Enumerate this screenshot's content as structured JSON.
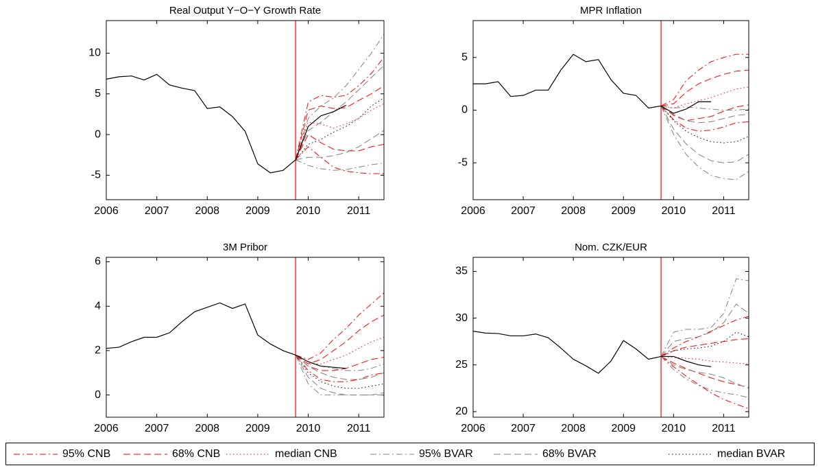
{
  "chart_data": [
    {
      "type": "line",
      "title": "Real Output Y−O−Y Growth Rate",
      "xlim": [
        2006,
        2011.5
      ],
      "xticks": [
        2006,
        2007,
        2008,
        2009,
        2010,
        2011
      ],
      "ylim": [
        -8,
        14
      ],
      "yticks": [
        -5,
        0,
        5,
        10
      ],
      "forecast_start": 2009.75,
      "color": "#000000",
      "x": [
        2006,
        2006.25,
        2006.5,
        2006.75,
        2007,
        2007.25,
        2007.5,
        2007.75,
        2008,
        2008.25,
        2008.5,
        2008.75,
        2009,
        2009.25,
        2009.5,
        2009.75,
        2010,
        2010.25,
        2010.5,
        2010.75
      ],
      "values": [
        6.8,
        7.1,
        7.2,
        6.7,
        7.4,
        6.1,
        5.7,
        5.4,
        3.2,
        3.4,
        2.2,
        0.4,
        -3.6,
        -4.7,
        -4.4,
        -3.1,
        1.0,
        2.3,
        2.8,
        3.6
      ],
      "forecast_x": [
        2009.75,
        2010,
        2010.25,
        2010.5,
        2010.75,
        2011,
        2011.25,
        2011.5
      ],
      "forecast": [
        {
          "lines": [
            [
              -3.1,
              4.0,
              4.8,
              4.6,
              4.8,
              6.0,
              7.5,
              9.5
            ],
            [
              -3.1,
              -1.5,
              -2.8,
              -4.0,
              -4.5,
              -4.7,
              -4.8,
              -4.8
            ]
          ]
        },
        {
          "lines": [
            [
              -3.1,
              3.0,
              3.5,
              3.2,
              3.3,
              4.2,
              5.0,
              6.0
            ],
            [
              -3.1,
              0.0,
              -1.0,
              -1.8,
              -2.0,
              -2.0,
              -1.5,
              -1.2
            ]
          ]
        },
        {
          "lines": [
            [
              -3.1,
              1.5,
              1.3,
              0.8,
              1.3,
              2.0,
              3.0,
              3.8
            ]
          ]
        },
        {
          "lines": [
            [
              -3.1,
              2.0,
              3.5,
              4.5,
              6.0,
              8.0,
              10.0,
              12.3
            ],
            [
              -3.1,
              -3.8,
              -4.2,
              -4.4,
              -4.3,
              -4.0,
              -3.7,
              -3.5
            ]
          ]
        },
        {
          "lines": [
            [
              -3.1,
              0.5,
              1.5,
              2.8,
              4.0,
              5.5,
              7.0,
              8.5
            ],
            [
              -3.1,
              -2.8,
              -2.8,
              -2.6,
              -2.2,
              -1.5,
              -0.5,
              0.5
            ]
          ]
        },
        {
          "lines": [
            [
              -3.1,
              -1.2,
              -0.6,
              0.3,
              1.0,
              2.0,
              3.5,
              4.5
            ]
          ]
        }
      ]
    },
    {
      "type": "line",
      "title": "MPR Inflation",
      "xlim": [
        2006,
        2011.5
      ],
      "xticks": [
        2006,
        2007,
        2008,
        2009,
        2010,
        2011
      ],
      "ylim": [
        -8.5,
        8.5
      ],
      "yticks": [
        -5,
        0,
        5
      ],
      "forecast_start": 2009.75,
      "color": "#000000",
      "x": [
        2006,
        2006.25,
        2006.5,
        2006.75,
        2007,
        2007.25,
        2007.5,
        2007.75,
        2008,
        2008.25,
        2008.5,
        2008.75,
        2009,
        2009.25,
        2009.5,
        2009.75,
        2010,
        2010.25,
        2010.5,
        2010.75
      ],
      "values": [
        2.5,
        2.5,
        2.7,
        1.3,
        1.4,
        1.9,
        1.9,
        3.8,
        5.3,
        4.6,
        4.8,
        2.9,
        1.6,
        1.4,
        0.2,
        0.4,
        -0.3,
        0.1,
        0.8,
        0.8
      ],
      "forecast_x": [
        2009.75,
        2010,
        2010.25,
        2010.5,
        2010.75,
        2011,
        2011.25,
        2011.5
      ],
      "forecast": [
        {
          "lines": [
            [
              0.4,
              1.0,
              2.8,
              3.8,
              4.6,
              5.0,
              5.3,
              5.3
            ],
            [
              0.4,
              -0.9,
              -1.7,
              -2.0,
              -1.9,
              -1.6,
              -1.2,
              -1.1
            ]
          ]
        },
        {
          "lines": [
            [
              0.4,
              0.6,
              1.7,
              2.5,
              3.0,
              3.4,
              3.7,
              3.8
            ],
            [
              0.4,
              -0.5,
              -1.0,
              -0.8,
              -0.6,
              -0.1,
              0.3,
              0.5
            ]
          ]
        },
        {
          "lines": [
            [
              0.4,
              0.2,
              0.6,
              0.9,
              1.2,
              1.6,
              2.0,
              2.2
            ]
          ]
        },
        {
          "lines": [
            [
              0.4,
              0.2,
              0.3,
              0.2,
              0.1,
              0.0,
              0.0,
              0.1
            ],
            [
              0.4,
              -2.3,
              -4.2,
              -5.4,
              -6.2,
              -6.5,
              -6.6,
              -5.8
            ]
          ]
        },
        {
          "lines": [
            [
              0.4,
              -0.4,
              -1.0,
              -1.2,
              -1.1,
              -0.8,
              -0.5,
              -0.4
            ],
            [
              0.4,
              -1.8,
              -3.2,
              -4.2,
              -4.8,
              -5.0,
              -4.9,
              -4.2
            ]
          ]
        },
        {
          "lines": [
            [
              0.4,
              -1.0,
              -2.0,
              -2.6,
              -3.0,
              -3.1,
              -3.0,
              -2.5
            ]
          ]
        }
      ]
    },
    {
      "type": "line",
      "title": "3M Pribor",
      "xlim": [
        2006,
        2011.5
      ],
      "xticks": [
        2006,
        2007,
        2008,
        2009,
        2010,
        2011
      ],
      "ylim": [
        -1,
        6.2
      ],
      "yticks": [
        0,
        2,
        4,
        6
      ],
      "forecast_start": 2009.75,
      "color": "#000000",
      "x": [
        2006,
        2006.25,
        2006.5,
        2006.75,
        2007,
        2007.25,
        2007.5,
        2007.75,
        2008,
        2008.25,
        2008.5,
        2008.75,
        2009,
        2009.25,
        2009.5,
        2009.75,
        2010,
        2010.25,
        2010.5,
        2010.75
      ],
      "values": [
        2.1,
        2.15,
        2.4,
        2.6,
        2.6,
        2.8,
        3.3,
        3.75,
        3.95,
        4.15,
        3.9,
        4.1,
        2.7,
        2.3,
        2.0,
        1.8,
        1.5,
        1.3,
        1.25,
        1.2
      ],
      "forecast_x": [
        2009.75,
        2010,
        2010.25,
        2010.5,
        2010.75,
        2011,
        2011.25,
        2011.5
      ],
      "forecast": [
        {
          "lines": [
            [
              1.8,
              1.6,
              1.9,
              2.5,
              3.0,
              3.6,
              4.1,
              4.6
            ],
            [
              1.8,
              1.1,
              0.7,
              0.6,
              0.6,
              0.7,
              0.9,
              1.0
            ]
          ]
        },
        {
          "lines": [
            [
              1.8,
              1.4,
              1.6,
              2.0,
              2.4,
              2.9,
              3.3,
              3.6
            ],
            [
              1.8,
              1.3,
              1.1,
              1.1,
              1.2,
              1.4,
              1.6,
              1.7
            ]
          ]
        },
        {
          "lines": [
            [
              1.8,
              1.4,
              1.4,
              1.6,
              1.8,
              2.1,
              2.4,
              2.6
            ]
          ]
        },
        {
          "lines": [
            [
              1.8,
              1.5,
              1.3,
              1.2,
              1.1,
              1.1,
              1.2,
              1.4
            ],
            [
              1.8,
              0.5,
              0.0,
              0.0,
              0.0,
              0.0,
              0.0,
              0.0
            ]
          ]
        },
        {
          "lines": [
            [
              1.8,
              1.3,
              1.0,
              0.8,
              0.7,
              0.7,
              0.8,
              1.0
            ],
            [
              1.8,
              0.8,
              0.3,
              0.1,
              0.0,
              0.0,
              0.0,
              0.1
            ]
          ]
        },
        {
          "lines": [
            [
              1.8,
              1.0,
              0.6,
              0.4,
              0.3,
              0.3,
              0.4,
              0.5
            ]
          ]
        }
      ]
    },
    {
      "type": "line",
      "title": "Nom. CZK/EUR",
      "xlim": [
        2006,
        2011.5
      ],
      "xticks": [
        2006,
        2007,
        2008,
        2009,
        2010,
        2011
      ],
      "ylim": [
        19.4,
        36.5
      ],
      "yticks": [
        20,
        25,
        30,
        35
      ],
      "forecast_start": 2009.75,
      "color": "#000000",
      "x": [
        2006,
        2006.25,
        2006.5,
        2006.75,
        2007,
        2007.25,
        2007.5,
        2007.75,
        2008,
        2008.25,
        2008.5,
        2008.75,
        2009,
        2009.25,
        2009.5,
        2009.75,
        2010,
        2010.25,
        2010.5,
        2010.75
      ],
      "values": [
        28.6,
        28.4,
        28.35,
        28.1,
        28.1,
        28.3,
        27.9,
        26.8,
        25.6,
        24.9,
        24.1,
        25.4,
        27.6,
        26.7,
        25.6,
        25.9,
        25.9,
        25.4,
        25.0,
        24.8
      ],
      "forecast_x": [
        2009.75,
        2010,
        2010.25,
        2010.5,
        2010.75,
        2011,
        2011.25,
        2011.5
      ],
      "forecast": [
        {
          "lines": [
            [
              25.9,
              26.8,
              27.5,
              28.0,
              28.6,
              29.2,
              29.8,
              30.2
            ],
            [
              25.9,
              24.8,
              23.8,
              22.9,
              22.0,
              21.3,
              20.8,
              20.3
            ]
          ]
        },
        {
          "lines": [
            [
              25.9,
              26.5,
              26.9,
              27.1,
              27.3,
              27.5,
              27.7,
              27.8
            ],
            [
              25.9,
              25.2,
              24.6,
              24.1,
              23.6,
              23.2,
              22.9,
              22.6
            ]
          ]
        },
        {
          "lines": [
            [
              25.9,
              25.8,
              25.7,
              25.6,
              25.4,
              25.3,
              25.2,
              25.1
            ]
          ]
        },
        {
          "lines": [
            [
              25.9,
              28.5,
              28.8,
              28.8,
              29.0,
              30.5,
              34.2,
              34.0
            ],
            [
              25.9,
              24.5,
              23.5,
              22.8,
              22.3,
              22.0,
              21.8,
              21.5
            ]
          ]
        },
        {
          "lines": [
            [
              25.9,
              27.5,
              27.8,
              28.0,
              28.5,
              29.5,
              31.5,
              30.5
            ],
            [
              25.9,
              25.0,
              24.5,
              24.2,
              24.0,
              23.6,
              23.0,
              22.5
            ]
          ]
        },
        {
          "lines": [
            [
              25.9,
              26.5,
              26.7,
              26.8,
              27.0,
              27.5,
              28.5,
              28.0
            ]
          ]
        }
      ]
    }
  ],
  "legend": [
    {
      "name": "95% CNB",
      "color": "#ff0000",
      "dash": "dashdot"
    },
    {
      "name": "68% CNB",
      "color": "#ff0000",
      "dash": "dashed"
    },
    {
      "name": "median CNB",
      "color": "#ff0000",
      "dash": "dotted"
    },
    {
      "name": "95% BVAR",
      "color": "#808080",
      "dash": "dashdot"
    },
    {
      "name": "68% BVAR",
      "color": "#808080",
      "dash": "dashed"
    },
    {
      "name": "median BVAR",
      "color": "#000000",
      "dash": "dotted"
    }
  ]
}
